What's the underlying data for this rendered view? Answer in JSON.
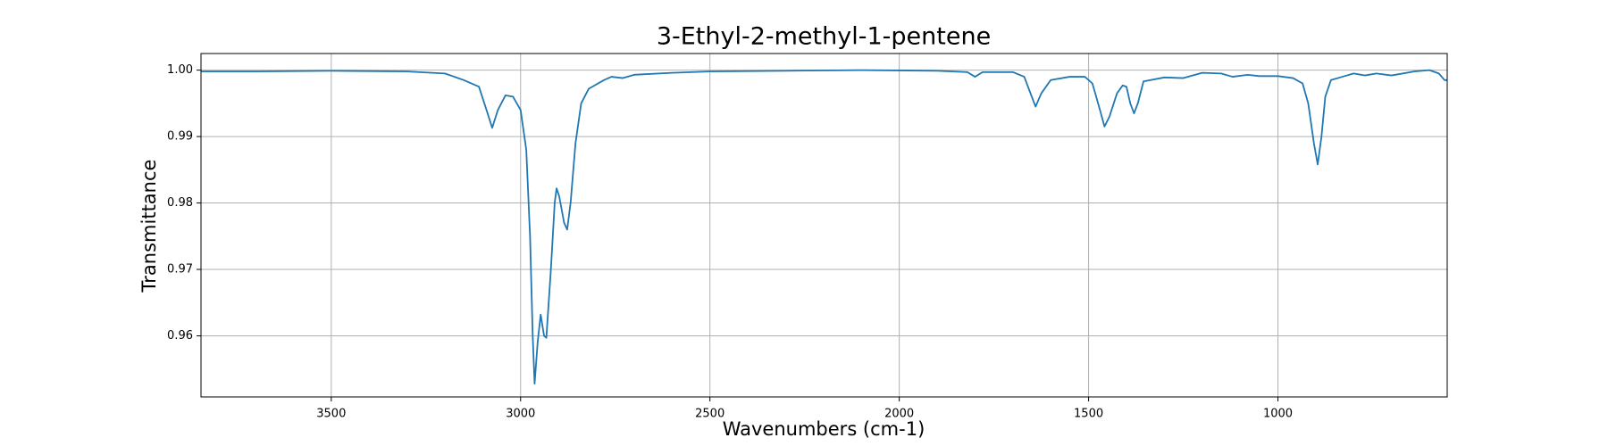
{
  "chart_data": {
    "type": "line",
    "title": "3-Ethyl-2-methyl-1-pentene",
    "x_label": "Wavenumbers (cm-1)",
    "y_label": "Transmittance",
    "xlim": [
      3844,
      553
    ],
    "ylim": [
      0.9508,
      1.0025
    ],
    "xticks": [
      3500,
      3000,
      2500,
      2000,
      1500,
      1000
    ],
    "yticks": [
      0.96,
      0.97,
      0.98,
      0.99,
      {
        "value": 1.0,
        "label": "1.00"
      }
    ],
    "grid": true,
    "x": [
      3844,
      3700,
      3500,
      3300,
      3200,
      3150,
      3110,
      3090,
      3075,
      3060,
      3040,
      3020,
      3000,
      2985,
      2975,
      2968,
      2963,
      2955,
      2947,
      2938,
      2932,
      2920,
      2910,
      2905,
      2898,
      2885,
      2877,
      2868,
      2855,
      2840,
      2820,
      2780,
      2760,
      2730,
      2700,
      2600,
      2500,
      2300,
      2100,
      1900,
      1820,
      1800,
      1780,
      1700,
      1670,
      1650,
      1640,
      1625,
      1600,
      1550,
      1510,
      1490,
      1470,
      1458,
      1445,
      1425,
      1410,
      1400,
      1390,
      1380,
      1370,
      1355,
      1300,
      1250,
      1200,
      1150,
      1120,
      1080,
      1050,
      1000,
      960,
      935,
      920,
      905,
      895,
      885,
      875,
      860,
      830,
      800,
      770,
      740,
      700,
      640,
      600,
      575,
      560,
      553
    ],
    "series": [
      {
        "name": "3-Ethyl-2-methyl-1-pentene",
        "color": "#1f77b4",
        "values": [
          0.9998,
          0.9998,
          0.9999,
          0.9998,
          0.9995,
          0.9985,
          0.9975,
          0.994,
          0.9913,
          0.994,
          0.9962,
          0.996,
          0.994,
          0.988,
          0.975,
          0.96,
          0.9528,
          0.959,
          0.9632,
          0.96,
          0.9597,
          0.97,
          0.98,
          0.9822,
          0.981,
          0.977,
          0.976,
          0.98,
          0.989,
          0.995,
          0.9972,
          0.9985,
          0.999,
          0.9988,
          0.9993,
          0.9996,
          0.9998,
          0.9999,
          1.0,
          0.9999,
          0.9997,
          0.999,
          0.9997,
          0.9997,
          0.999,
          0.996,
          0.9945,
          0.9965,
          0.9985,
          0.999,
          0.999,
          0.998,
          0.994,
          0.9915,
          0.993,
          0.9965,
          0.9977,
          0.9975,
          0.995,
          0.9935,
          0.995,
          0.9983,
          0.9989,
          0.9988,
          0.9996,
          0.9995,
          0.999,
          0.9993,
          0.9991,
          0.9991,
          0.9988,
          0.998,
          0.995,
          0.989,
          0.9858,
          0.99,
          0.996,
          0.9985,
          0.999,
          0.9995,
          0.9992,
          0.9995,
          0.9992,
          0.9998,
          1.0,
          0.9995,
          0.9985,
          0.9985
        ]
      }
    ]
  }
}
